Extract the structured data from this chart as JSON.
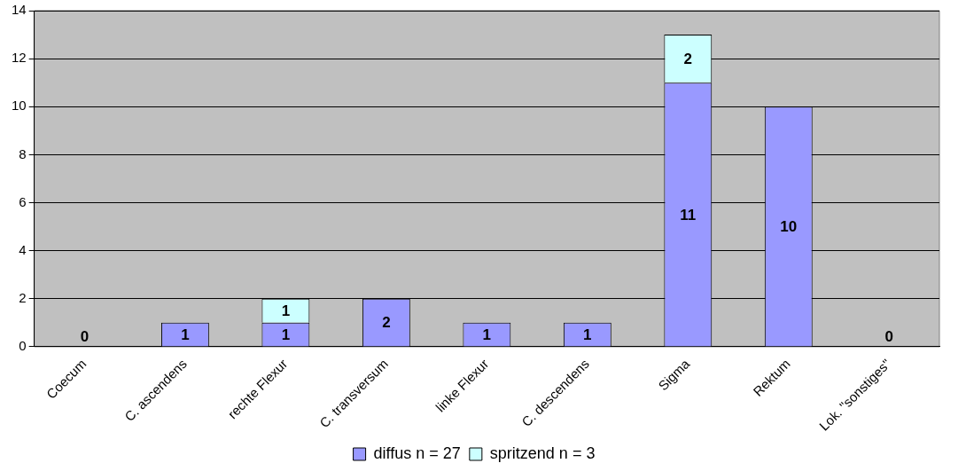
{
  "chart_data": {
    "type": "bar",
    "stacked": true,
    "categories": [
      "Coecum",
      "C. ascendens",
      "rechte Flexur",
      "C. transversum",
      "linke Flexur",
      "C. descendens",
      "Sigma",
      "Rektum",
      "Lok. \"sonstiges\""
    ],
    "series": [
      {
        "name": "diffus n = 27",
        "color": "#9999ff",
        "values": [
          0,
          1,
          1,
          2,
          1,
          1,
          11,
          10,
          0
        ],
        "value_labels": [
          "0",
          "1",
          "1",
          "2",
          "1",
          "1",
          "11",
          "10",
          "0"
        ]
      },
      {
        "name": "spritzend n = 3",
        "color": "#ccffff",
        "values": [
          0,
          0,
          1,
          0,
          0,
          0,
          2,
          0,
          0
        ],
        "value_labels": [
          null,
          null,
          "1",
          null,
          null,
          null,
          "2",
          null,
          null
        ]
      }
    ],
    "ylim": [
      0,
      14
    ],
    "yticks": [
      0,
      2,
      4,
      6,
      8,
      10,
      12,
      14
    ],
    "grid": "y",
    "legend": "bottom"
  }
}
